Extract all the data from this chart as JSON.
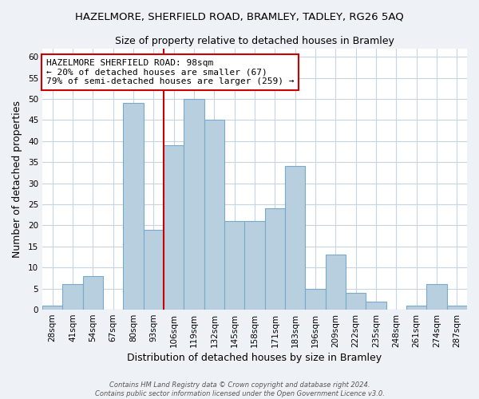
{
  "title": "HAZELMORE, SHERFIELD ROAD, BRAMLEY, TADLEY, RG26 5AQ",
  "subtitle": "Size of property relative to detached houses in Bramley",
  "xlabel": "Distribution of detached houses by size in Bramley",
  "ylabel": "Number of detached properties",
  "bin_labels": [
    "28sqm",
    "41sqm",
    "54sqm",
    "67sqm",
    "80sqm",
    "93sqm",
    "106sqm",
    "119sqm",
    "132sqm",
    "145sqm",
    "158sqm",
    "171sqm",
    "183sqm",
    "196sqm",
    "209sqm",
    "222sqm",
    "235sqm",
    "248sqm",
    "261sqm",
    "274sqm",
    "287sqm"
  ],
  "bar_heights": [
    1,
    6,
    8,
    0,
    49,
    19,
    39,
    50,
    45,
    21,
    21,
    24,
    34,
    5,
    13,
    4,
    2,
    0,
    1,
    6,
    1
  ],
  "bar_color": "#b8cfe0",
  "bar_edge_color": "#7aaaca",
  "vline_x_bar": 6.0,
  "annotation_text_line1": "HAZELMORE SHERFIELD ROAD: 98sqm",
  "annotation_text_line2": "← 20% of detached houses are smaller (67)",
  "annotation_text_line3": "79% of semi-detached houses are larger (259) →",
  "annotation_box_edge": "#cc0000",
  "vline_color": "#cc0000",
  "ylim": [
    0,
    62
  ],
  "yticks": [
    0,
    5,
    10,
    15,
    20,
    25,
    30,
    35,
    40,
    45,
    50,
    55,
    60
  ],
  "footer_line1": "Contains HM Land Registry data © Crown copyright and database right 2024.",
  "footer_line2": "Contains public sector information licensed under the Open Government Licence v3.0.",
  "bg_color": "#eef2f7",
  "plot_bg_color": "#ffffff",
  "grid_color": "#c8d4e0",
  "title_fontsize": 9.5,
  "subtitle_fontsize": 9,
  "axis_label_fontsize": 9,
  "tick_fontsize": 7.5,
  "annotation_fontsize": 8
}
